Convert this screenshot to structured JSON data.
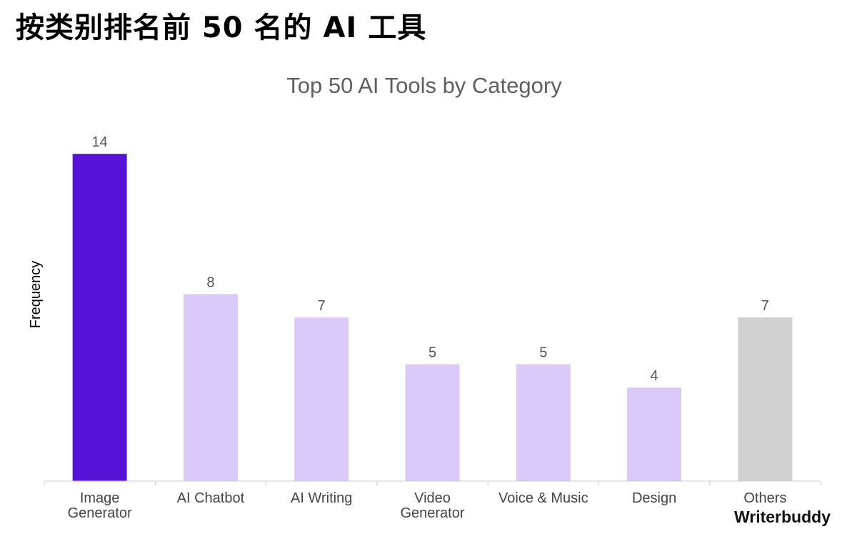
{
  "page": {
    "title": "按类别排名前 50 名的 AI 工具"
  },
  "brand": {
    "name": "Writerbuddy"
  },
  "colors": {
    "highlight": "#5612d6",
    "default": "#d9cafa",
    "others": "#d0d0d0",
    "axis": "#cccccc"
  },
  "chart_data": {
    "type": "bar",
    "title": "Top 50 AI Tools by Category",
    "xlabel": "",
    "ylabel": "Frequency",
    "categories": [
      [
        "Image",
        "Generator"
      ],
      [
        "AI Chatbot"
      ],
      [
        "AI Writing"
      ],
      [
        "Video",
        "Generator"
      ],
      [
        "Voice & Music"
      ],
      [
        "Design"
      ],
      [
        "Others"
      ]
    ],
    "values": [
      14,
      8,
      7,
      5,
      5,
      4,
      7
    ],
    "ylim": [
      0,
      14
    ],
    "grid": false,
    "legend": "none",
    "data_labels": true
  }
}
